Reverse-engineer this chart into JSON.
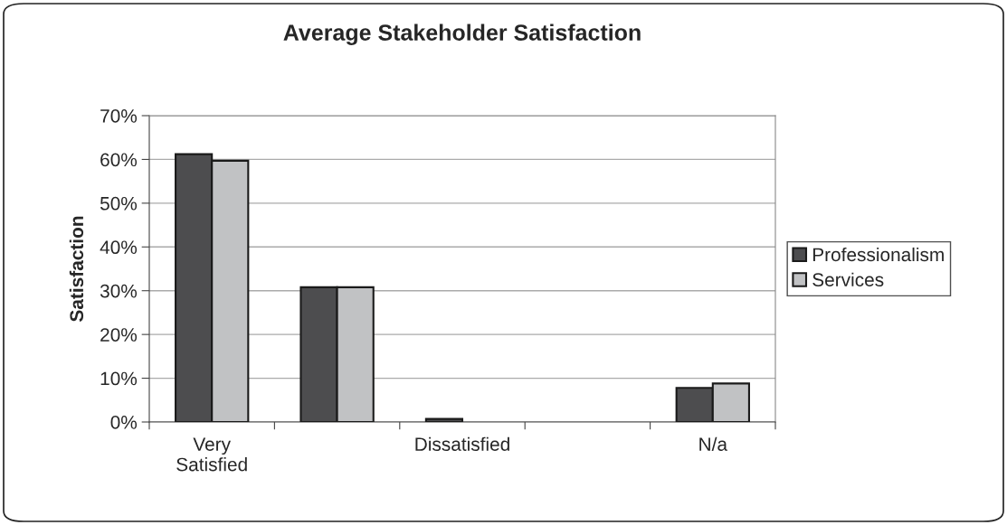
{
  "chart_data": {
    "type": "bar",
    "title": "Average Stakeholder Satisfaction",
    "ylabel": "Satisfaction",
    "categories": [
      "Very\nSatisfied",
      null,
      "Dissatisfied",
      null,
      "N/a"
    ],
    "series": [
      {
        "name": "Professionalism",
        "color": "#4d4d4f",
        "values": [
          61.2,
          30.8,
          0.7,
          0,
          7.8
        ]
      },
      {
        "name": "Services",
        "color": "#c1c2c4",
        "values": [
          59.7,
          30.8,
          0,
          0,
          8.8
        ]
      }
    ],
    "ylim": [
      0,
      70
    ],
    "yticks": [
      {
        "value": 0,
        "label": "0%"
      },
      {
        "value": 10,
        "label": "10%"
      },
      {
        "value": 20,
        "label": "20%"
      },
      {
        "value": 30,
        "label": "30%"
      },
      {
        "value": 40,
        "label": "40%"
      },
      {
        "value": 50,
        "label": "50%"
      },
      {
        "value": 60,
        "label": "60%"
      },
      {
        "value": 70,
        "label": "70%"
      }
    ],
    "grid": "y",
    "legend": "right"
  }
}
